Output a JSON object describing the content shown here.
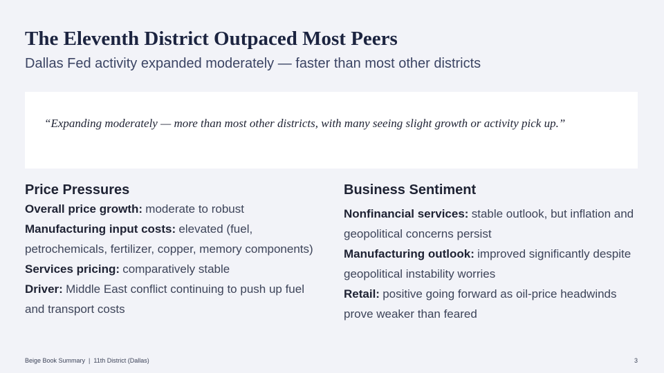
{
  "slide": {
    "title": "The Eleventh District Outpaced Most Peers",
    "subtitle": "Dallas Fed activity expanded moderately — faster than most other districts",
    "quote": "“Expanding moderately — more than most other districts, with many seeing slight growth or activity pick up.”",
    "left": {
      "heading": "Price Pressures",
      "items": [
        {
          "label": "Overall price growth:",
          "text": "moderate to robust"
        },
        {
          "label": "Manufacturing input costs:",
          "text": "elevated (fuel, petrochemicals, fertilizer, copper, memory components)"
        },
        {
          "label": "Services pricing:",
          "text": "comparatively stable"
        },
        {
          "label": "Driver:",
          "text": "Middle East conflict continuing to push up fuel and transport costs"
        }
      ]
    },
    "right": {
      "heading": "Business Sentiment",
      "items": [
        {
          "label": "Nonfinancial services:",
          "text": "stable outlook, but inflation and geopolitical concerns persist"
        },
        {
          "label": "Manufacturing outlook:",
          "text": "improved significantly despite geopolitical instability worries"
        },
        {
          "label": "Retail:",
          "text": "positive going forward as oil-price headwinds prove weaker than feared"
        }
      ]
    },
    "footer": "Beige Book Summary  |  11th District (Dallas)",
    "page_number": "3"
  }
}
